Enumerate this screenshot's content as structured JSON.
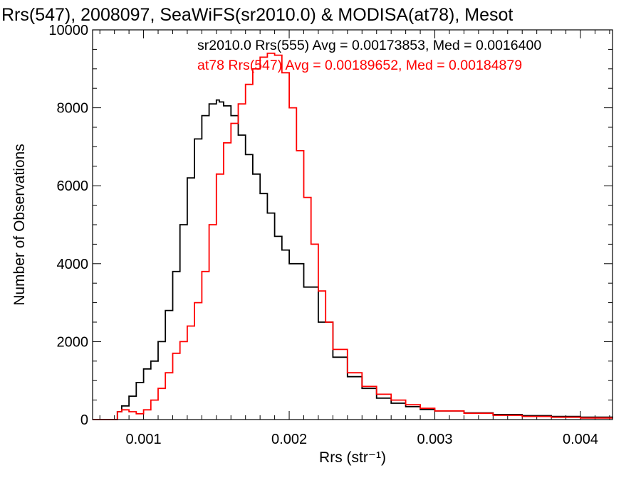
{
  "chart_data": {
    "type": "line",
    "title": "Rrs(547), 2008097, SeaWiFS(sr2010.0) & MODISA(at78), Mesot",
    "xlabel": "Rrs (str⁻¹)",
    "ylabel": "Number of Observations",
    "xlim": [
      0.00065,
      0.00422
    ],
    "ylim": [
      0,
      10000
    ],
    "x_ticks": [
      0.001,
      0.002,
      0.003,
      0.004
    ],
    "x_tick_labels": [
      "0.001",
      "0.002",
      "0.003",
      "0.004"
    ],
    "y_ticks": [
      0,
      2000,
      4000,
      6000,
      8000,
      10000
    ],
    "y_tick_labels": [
      "0",
      "2000",
      "4000",
      "6000",
      "8000",
      "10000"
    ],
    "legend_placement": "top-right",
    "series": [
      {
        "legend": "sr2010.0 Rrs(555) Avg = 0.00173853, Med = 0.0016400",
        "color": "#000000",
        "style": "step",
        "x": [
          0.00065,
          0.0008,
          0.00082,
          0.00085,
          0.0009,
          0.00095,
          0.001,
          0.00105,
          0.0011,
          0.00115,
          0.0012,
          0.00125,
          0.0013,
          0.00135,
          0.0014,
          0.00145,
          0.0015,
          0.00152,
          0.00155,
          0.0016,
          0.00165,
          0.0017,
          0.00175,
          0.0018,
          0.00185,
          0.0019,
          0.00195,
          0.002,
          0.0021,
          0.0022,
          0.0023,
          0.0024,
          0.0025,
          0.0026,
          0.0027,
          0.0028,
          0.0029,
          0.003,
          0.0032,
          0.0034,
          0.0036,
          0.0038,
          0.004,
          0.00422
        ],
        "y": [
          0,
          0,
          200,
          350,
          600,
          950,
          1300,
          1500,
          2000,
          2800,
          3800,
          5000,
          6200,
          7200,
          7800,
          8100,
          8200,
          8150,
          8050,
          7800,
          7300,
          6800,
          6300,
          5800,
          5300,
          4700,
          4350,
          4000,
          3400,
          2500,
          1600,
          1100,
          800,
          550,
          420,
          330,
          260,
          220,
          170,
          130,
          100,
          80,
          60,
          40
        ]
      },
      {
        "legend": "at78 Rrs(547) Avg = 0.00189652, Med = 0.00184879",
        "color": "#ff0000",
        "style": "step",
        "x": [
          0.00065,
          0.0008,
          0.00082,
          0.00085,
          0.0009,
          0.00095,
          0.001,
          0.00105,
          0.0011,
          0.00115,
          0.0012,
          0.00125,
          0.0013,
          0.00135,
          0.0014,
          0.00145,
          0.0015,
          0.00155,
          0.0016,
          0.00165,
          0.0017,
          0.00175,
          0.0018,
          0.00185,
          0.0019,
          0.00195,
          0.002,
          0.00205,
          0.0021,
          0.00215,
          0.0022,
          0.00225,
          0.0023,
          0.0024,
          0.0025,
          0.0026,
          0.0027,
          0.0028,
          0.0029,
          0.003,
          0.0032,
          0.0034,
          0.0036,
          0.0038,
          0.004,
          0.00422
        ],
        "y": [
          0,
          0,
          200,
          250,
          200,
          150,
          250,
          500,
          800,
          1200,
          1700,
          2000,
          2400,
          3000,
          3800,
          5000,
          6300,
          7100,
          7600,
          8100,
          8600,
          9000,
          9300,
          9400,
          9350,
          8900,
          8000,
          6900,
          5700,
          4500,
          3300,
          2500,
          1800,
          1200,
          850,
          650,
          500,
          380,
          290,
          220,
          160,
          110,
          80,
          60,
          40,
          30
        ]
      }
    ]
  }
}
